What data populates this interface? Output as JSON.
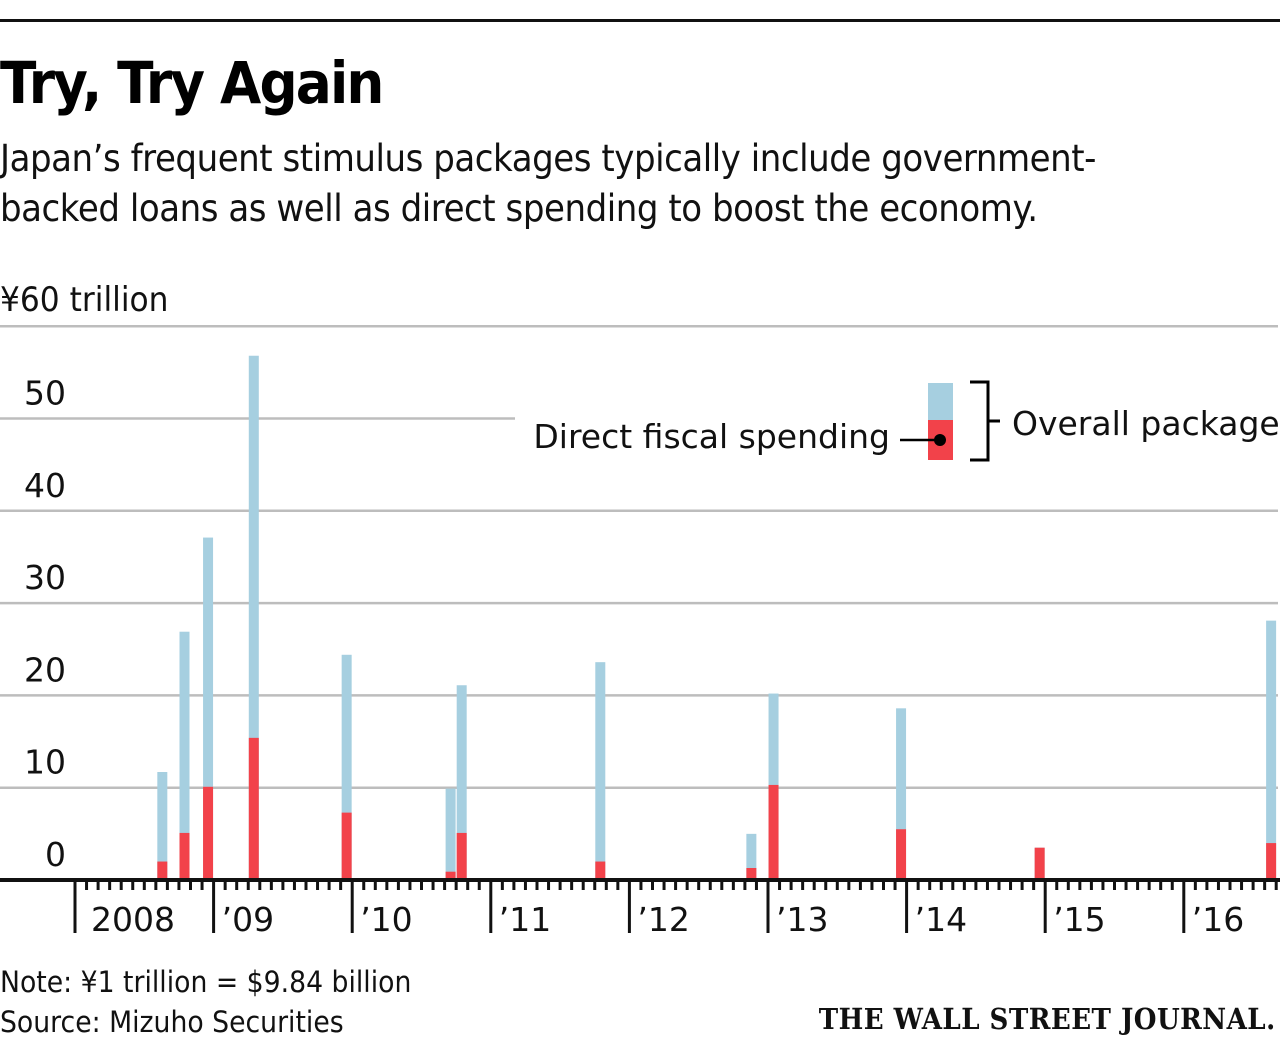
{
  "header": {
    "title": "Try, Try Again",
    "subtitle_lines": [
      "Japan’s frequent stimulus packages typically include government-",
      "backed loans as well as direct spending to boost the economy."
    ],
    "unit_label": "¥60 trillion"
  },
  "footer": {
    "note": "Note: ¥1 trillion = $9.84 billion",
    "source": "Source: Mizuho Securities",
    "publisher": "THE WALL STREET JOURNAL."
  },
  "colors": {
    "overall": "#a6cfe0",
    "direct": "#f2424a",
    "grid": "#bdbdbd",
    "axis": "#111111"
  },
  "chart_data": {
    "type": "bar",
    "title": "Try, Try Again",
    "ylabel": "¥ trillion",
    "ylim": [
      0,
      60
    ],
    "yticks": [
      0,
      10,
      20,
      30,
      40,
      50
    ],
    "ytick_labels": [
      "0",
      "10",
      "20",
      "30",
      "40",
      "50"
    ],
    "xlim": [
      2008,
      2016.7
    ],
    "xticks": [
      2008,
      2009,
      2010,
      2011,
      2012,
      2013,
      2014,
      2015,
      2016
    ],
    "xtick_labels": [
      "2008",
      "’09",
      "’10",
      "’11",
      "’12",
      "’13",
      "’14",
      "’15",
      "’16"
    ],
    "grid": true,
    "legend": {
      "position": "top-right",
      "entries": [
        {
          "name": "Direct fiscal spending",
          "color": "#f2424a"
        },
        {
          "name": "Overall package",
          "color": "#a6cfe0"
        }
      ]
    },
    "series": [
      {
        "name": "Overall package",
        "values": [
          11.7,
          26.9,
          37.1,
          56.8,
          24.4,
          9.9,
          21.1,
          23.6,
          5.0,
          20.2,
          18.6,
          3.5,
          28.1
        ]
      },
      {
        "name": "Direct fiscal spending",
        "values": [
          2.0,
          5.1,
          10.1,
          15.4,
          7.3,
          0.9,
          5.1,
          2.0,
          1.3,
          10.3,
          5.5,
          3.5,
          4.0
        ]
      }
    ],
    "x": [
      2008.63,
      2008.79,
      2008.96,
      2009.29,
      2009.96,
      2010.71,
      2010.79,
      2011.79,
      2012.88,
      2013.04,
      2013.96,
      2014.96,
      2016.63
    ],
    "categories": [
      "Aug 2008",
      "Oct 2008",
      "Dec 2008",
      "Apr 2009",
      "Dec 2009",
      "Sep 2010",
      "Oct 2010",
      "Oct 2011",
      "Nov 2012",
      "Jan 2013",
      "Dec 2013",
      "Dec 2014",
      "Aug 2016"
    ]
  }
}
